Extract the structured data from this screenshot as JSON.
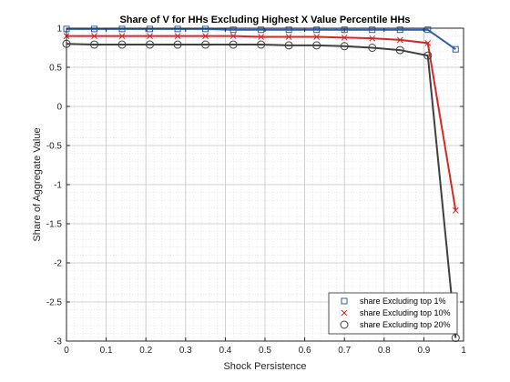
{
  "chart_data": {
    "type": "line",
    "title": "Share of V for HHs Excluding Highest X Value Percentile HHs",
    "xlabel": "Shock Persistence",
    "ylabel": "Share of Aggregate Value",
    "xlim": [
      0,
      1
    ],
    "ylim": [
      -3,
      1
    ],
    "xticks": [
      0,
      0.1,
      0.2,
      0.3,
      0.4,
      0.5,
      0.6,
      0.7,
      0.8,
      0.9,
      1
    ],
    "xtick_labels": [
      "0",
      "0.1",
      "0.2",
      "0.3",
      "0.4",
      "0.5",
      "0.6",
      "0.7",
      "0.8",
      "0.9",
      "1"
    ],
    "yticks": [
      -3,
      -2.5,
      -2,
      -1.5,
      -1,
      -0.5,
      0,
      0.5,
      1
    ],
    "ytick_labels": [
      "-3",
      "-2.5",
      "-2",
      "-1.5",
      "-1",
      "-0.5",
      "0",
      "0.5",
      "1"
    ],
    "grid": true,
    "minor_grid": true,
    "legend_position": "bottom-right",
    "x": [
      0,
      0.07,
      0.14,
      0.21,
      0.28,
      0.35,
      0.42,
      0.49,
      0.56,
      0.63,
      0.7,
      0.77,
      0.84,
      0.91,
      0.98
    ],
    "series": [
      {
        "name": "share Excluding top 1%",
        "color": "#2E5FA8",
        "marker": "square",
        "values": [
          0.99,
          0.99,
          0.99,
          0.99,
          0.99,
          0.99,
          0.98,
          0.98,
          0.98,
          0.98,
          0.98,
          0.98,
          0.98,
          0.98,
          0.73
        ]
      },
      {
        "name": "share Excluding top 10%",
        "color": "#D62728",
        "marker": "x",
        "values": [
          0.9,
          0.9,
          0.9,
          0.9,
          0.9,
          0.9,
          0.9,
          0.89,
          0.89,
          0.89,
          0.88,
          0.87,
          0.85,
          0.81,
          -1.33
        ]
      },
      {
        "name": "share Excluding top 20%",
        "color": "#404040",
        "marker": "circle",
        "values": [
          0.8,
          0.79,
          0.79,
          0.79,
          0.79,
          0.79,
          0.79,
          0.79,
          0.78,
          0.78,
          0.77,
          0.75,
          0.72,
          0.65,
          -2.96
        ]
      }
    ]
  }
}
